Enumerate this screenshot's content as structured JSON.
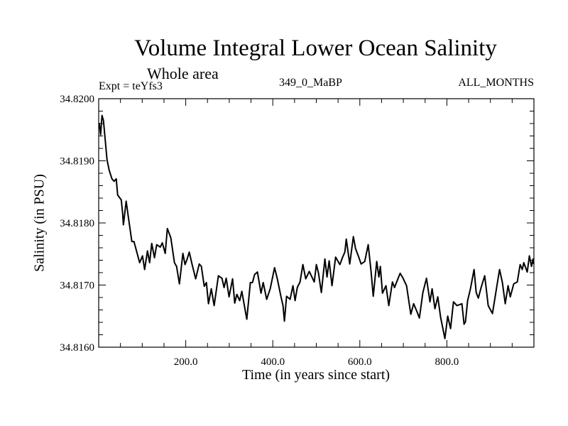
{
  "chart_data": {
    "type": "line",
    "title": "Volume Integral Lower Ocean Salinity",
    "subtitle": "Whole area",
    "annotations": {
      "experiment": "Expt = teYfs3",
      "period": "349_0_MaBP",
      "months": "ALL_MONTHS"
    },
    "xlabel": "Time (in years since start)",
    "ylabel": "Salinity (in PSU)",
    "xlim": [
      0,
      1000
    ],
    "ylim": [
      34.816,
      34.82
    ],
    "x_ticks": [
      200,
      400,
      600,
      800
    ],
    "x_tick_labels": [
      "200.0",
      "400.0",
      "600.0",
      "800.0"
    ],
    "x_minor_step": 50,
    "y_ticks": [
      34.816,
      34.817,
      34.818,
      34.819,
      34.82
    ],
    "y_tick_labels": [
      "34.8160",
      "34.8170",
      "34.8180",
      "34.8190",
      "34.8200"
    ],
    "y_minor_step": 0.0002,
    "grid": false,
    "legend": "none",
    "series": [
      {
        "name": "Salinity",
        "color": "#000000",
        "x": [
          1.1,
          4.4,
          7.7,
          11.0,
          19.1,
          24.0,
          30.5,
          35.4,
          40.3,
          43.6,
          51.8,
          55.0,
          56.7,
          63.2,
          68.0,
          76.2,
          81.1,
          87.6,
          94.1,
          100.6,
          105.5,
          112.0,
          116.9,
          121.8,
          128.3,
          133.2,
          141.4,
          146.2,
          152.8,
          157.7,
          165.8,
          174.0,
          178.9,
          185.4,
          193.5,
          198.4,
          203.3,
          208.2,
          214.7,
          222.9,
          231.0,
          235.9,
          242.5,
          247.4,
          252.2,
          258.8,
          265.3,
          275.1,
          283.2,
          288.1,
          293.0,
          299.5,
          307.7,
          312.6,
          317.5,
          324.0,
          328.9,
          340.3,
          348.5,
          353.4,
          358.3,
          364.8,
          373.0,
          377.9,
          386.0,
          394.2,
          404.0,
          410.5,
          418.6,
          423.5,
          426.8,
          431.7,
          439.8,
          446.4,
          451.3,
          456.2,
          462.7,
          469.2,
          475.7,
          483.9,
          495.3,
          500.2,
          505.1,
          511.6,
          519.8,
          524.7,
          529.6,
          536.1,
          544.3,
          554.1,
          560.6,
          565.5,
          568.8,
          576.9,
          585.1,
          590.0,
          598.1,
          603.0,
          611.2,
          619.3,
          625.9,
          630.8,
          638.9,
          643.8,
          647.1,
          652.0,
          660.1,
          666.6,
          674.8,
          679.7,
          684.6,
          692.7,
          699.3,
          707.4,
          712.3,
          717.2,
          723.7,
          731.9,
          736.8,
          744.9,
          753.1,
          761.2,
          766.1,
          772.6,
          779.2,
          785.7,
          795.5,
          802.0,
          808.5,
          815.1,
          823.2,
          834.6,
          839.5,
          842.8,
          847.7,
          854.2,
          862.4,
          867.3,
          872.2,
          878.7,
          886.9,
          895.0,
          904.8,
          916.2,
          921.1,
          927.6,
          934.1,
          940.7,
          945.6,
          953.7,
          961.9,
          968.4,
          973.3,
          976.6,
          984.7,
          989.6,
          994.5,
          997.8,
          999.5
        ],
        "y": [
          34.81961,
          34.81942,
          34.81973,
          34.81965,
          34.81902,
          34.81885,
          34.81871,
          34.81867,
          34.81871,
          34.81845,
          34.81837,
          34.81816,
          34.81797,
          34.81835,
          34.8181,
          34.8177,
          34.8177,
          34.81753,
          34.81736,
          34.81747,
          34.81725,
          34.81755,
          34.81736,
          34.81767,
          34.81744,
          34.81765,
          34.81761,
          34.81768,
          34.81751,
          34.81791,
          34.81776,
          34.81736,
          34.8173,
          34.81702,
          34.81751,
          34.81733,
          34.81742,
          34.81753,
          34.81733,
          34.8171,
          34.81734,
          34.8173,
          34.81698,
          34.81704,
          34.8167,
          34.81694,
          34.81667,
          34.81715,
          34.81711,
          34.81696,
          34.81711,
          34.81681,
          34.8171,
          34.81671,
          34.81685,
          34.81675,
          34.8169,
          34.81645,
          34.81704,
          34.81704,
          34.81717,
          34.81721,
          34.81687,
          34.81704,
          34.81677,
          34.81694,
          34.81728,
          34.8171,
          34.81682,
          34.81667,
          34.81642,
          34.81682,
          34.81677,
          34.81699,
          34.81675,
          34.81696,
          34.81705,
          34.81733,
          34.8171,
          34.81722,
          34.81705,
          34.81733,
          34.81719,
          34.81688,
          34.81742,
          34.81713,
          34.81739,
          34.81699,
          34.81745,
          34.81733,
          34.81745,
          34.81753,
          34.81774,
          34.81734,
          34.81778,
          34.81759,
          34.81744,
          34.81734,
          34.81738,
          34.81765,
          34.81721,
          34.81682,
          34.81738,
          34.81713,
          34.8173,
          34.81687,
          34.81699,
          34.81667,
          34.81705,
          34.81696,
          34.81705,
          34.81719,
          34.81711,
          34.81699,
          34.81676,
          34.81653,
          34.8167,
          34.81656,
          34.81647,
          34.81688,
          34.81711,
          34.81673,
          34.81694,
          34.81662,
          34.81681,
          34.81648,
          34.81614,
          34.8165,
          34.8163,
          34.81673,
          34.81667,
          34.8167,
          34.81637,
          34.81641,
          34.81675,
          34.81694,
          34.81725,
          34.81688,
          34.81679,
          34.81696,
          34.81715,
          34.81667,
          34.81654,
          34.81704,
          34.81725,
          34.81704,
          34.8167,
          34.81699,
          34.81681,
          34.81702,
          34.81705,
          34.81733,
          34.81725,
          34.81736,
          34.81721,
          34.81747,
          34.8173,
          34.81742,
          34.81734
        ]
      }
    ]
  }
}
